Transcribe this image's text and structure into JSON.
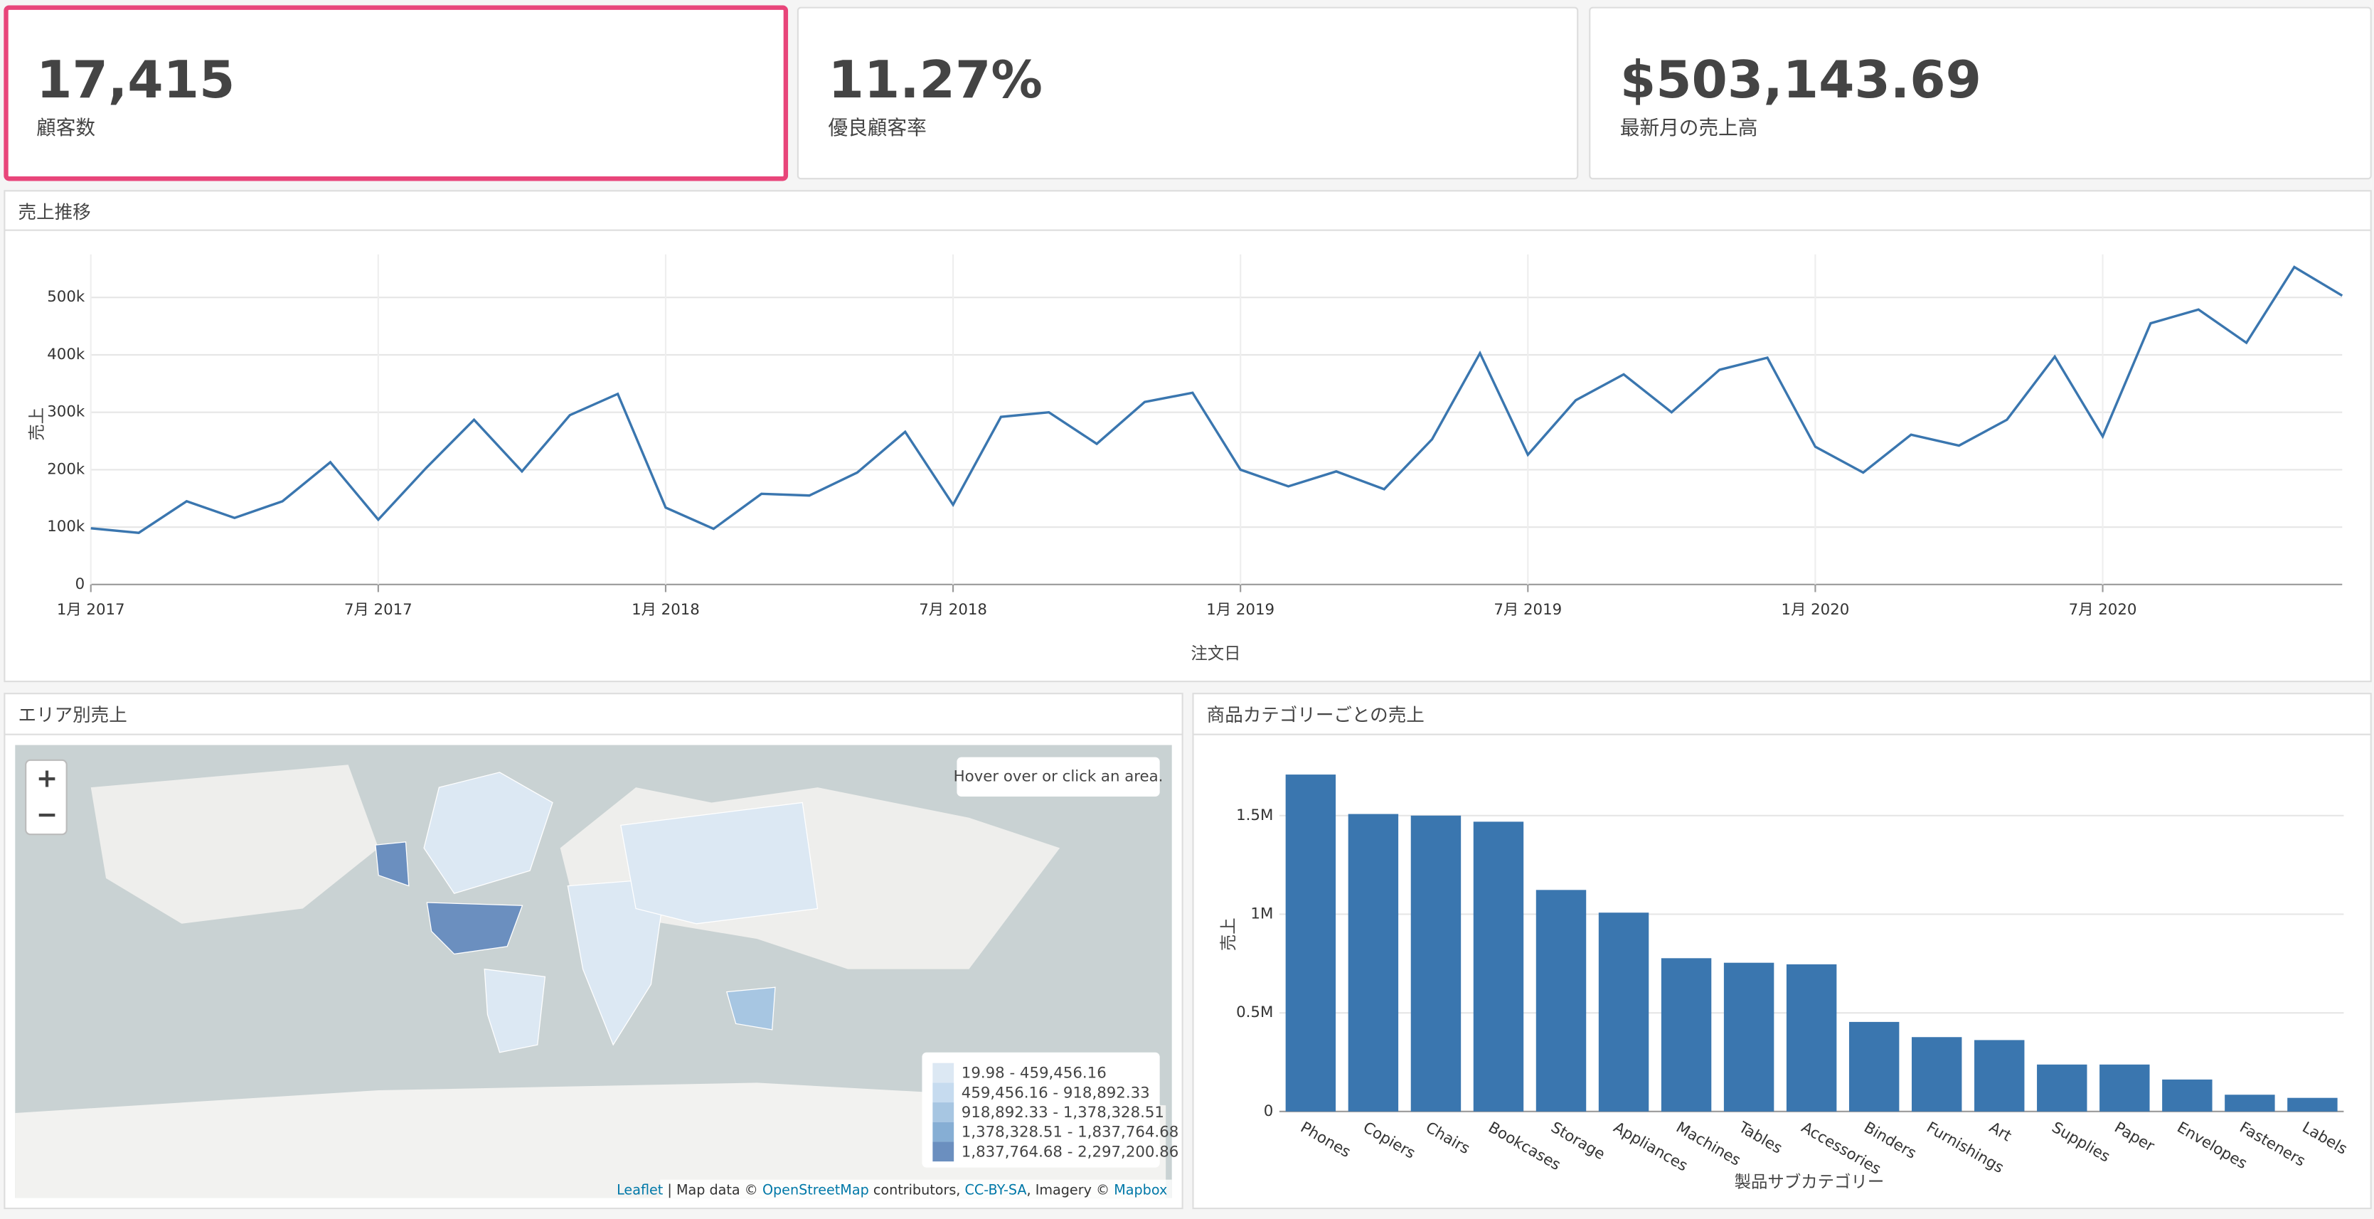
{
  "kpis": [
    {
      "value": "17,415",
      "label": "顧客数"
    },
    {
      "value": "11.27%",
      "label": "優良顧客率"
    },
    {
      "value": "$503,143.69",
      "label": "最新月の売上高"
    }
  ],
  "chart_data": [
    {
      "type": "line",
      "title": "売上推移",
      "x_label": "注文日",
      "y_label": "売上",
      "color": "#3a76af",
      "grid": true,
      "x": [
        "2017-01",
        "2017-02",
        "2017-03",
        "2017-04",
        "2017-05",
        "2017-06",
        "2017-07",
        "2017-08",
        "2017-09",
        "2017-10",
        "2017-11",
        "2017-12",
        "2018-01",
        "2018-02",
        "2018-03",
        "2018-04",
        "2018-05",
        "2018-06",
        "2018-07",
        "2018-08",
        "2018-09",
        "2018-10",
        "2018-11",
        "2018-12",
        "2019-01",
        "2019-02",
        "2019-03",
        "2019-04",
        "2019-05",
        "2019-06",
        "2019-07",
        "2019-08",
        "2019-09",
        "2019-10",
        "2019-11",
        "2019-12",
        "2020-01",
        "2020-02",
        "2020-03",
        "2020-04",
        "2020-05",
        "2020-06",
        "2020-07",
        "2020-08",
        "2020-09",
        "2020-10",
        "2020-11",
        "2020-12"
      ],
      "values": [
        98000,
        90000,
        145000,
        116000,
        145000,
        213000,
        113000,
        203000,
        287000,
        197000,
        295000,
        332000,
        134000,
        97000,
        158000,
        155000,
        195000,
        266000,
        139000,
        292000,
        300000,
        245000,
        318000,
        334000,
        200000,
        171000,
        197000,
        166000,
        253000,
        403000,
        226000,
        321000,
        366000,
        300000,
        374000,
        395000,
        240000,
        195000,
        261000,
        242000,
        287000,
        397000,
        258000,
        455000,
        479000,
        421000,
        553000,
        503144
      ],
      "xlim": [
        "2017-01",
        "2020-12"
      ],
      "xticks": [
        {
          "value": "2017-01",
          "label": "1月 2017"
        },
        {
          "value": "2017-07",
          "label": "7月 2017"
        },
        {
          "value": "2018-01",
          "label": "1月 2018"
        },
        {
          "value": "2018-07",
          "label": "7月 2018"
        },
        {
          "value": "2019-01",
          "label": "1月 2019"
        },
        {
          "value": "2019-07",
          "label": "7月 2019"
        },
        {
          "value": "2020-01",
          "label": "1月 2020"
        },
        {
          "value": "2020-07",
          "label": "7月 2020"
        }
      ],
      "ylim": [
        0,
        575000
      ],
      "yticks": [
        0,
        {
          "value": 100000,
          "label": "100k"
        },
        {
          "value": 200000,
          "label": "200k"
        },
        {
          "value": 300000,
          "label": "300k"
        },
        {
          "value": 400000,
          "label": "400k"
        },
        {
          "value": 500000,
          "label": "500k"
        }
      ]
    },
    {
      "type": "bar",
      "title": "商品カテゴリーごとの売上",
      "x_label": "製品サブカテゴリー",
      "y_label": "売上",
      "color": "#3a76af",
      "grid": true,
      "categories": [
        "Phones",
        "Copiers",
        "Chairs",
        "Bookcases",
        "Storage",
        "Appliances",
        "Machines",
        "Tables",
        "Accessories",
        "Binders",
        "Furnishings",
        "Art",
        "Supplies",
        "Paper",
        "Envelopes",
        "Fasteners",
        "Labels"
      ],
      "values": [
        1708000,
        1508000,
        1500000,
        1469000,
        1123000,
        1008000,
        777000,
        754000,
        746000,
        454000,
        377000,
        362000,
        238000,
        238000,
        162000,
        85000,
        69000
      ],
      "ylim": [
        0,
        1850000
      ],
      "yticks": [
        0,
        {
          "value": 500000,
          "label": "0.5M"
        },
        {
          "value": 1000000,
          "label": "1M"
        },
        {
          "value": 1500000,
          "label": "1.5M"
        }
      ]
    }
  ],
  "map": {
    "title": "エリア別売上",
    "zoom_in": "+",
    "zoom_out": "−",
    "info": "Hover over or click an area.",
    "legend": [
      {
        "label": "19.98 - 459,456.16",
        "color": "#dce8f3"
      },
      {
        "label": "459,456.16 - 918,892.33",
        "color": "#c6dbef"
      },
      {
        "label": "918,892.33 - 1,378,328.51",
        "color": "#a7c6e2"
      },
      {
        "label": "1,378,328.51 - 1,837,764.68",
        "color": "#86aed4"
      },
      {
        "label": "1,837,764.68 - 2,297,200.86",
        "color": "#6b8fbf"
      }
    ],
    "attribution": [
      "Leaflet",
      " | Map data © ",
      "OpenStreetMap",
      " contributors, ",
      "CC-BY-SA",
      ", Imagery © ",
      "Mapbox"
    ]
  }
}
